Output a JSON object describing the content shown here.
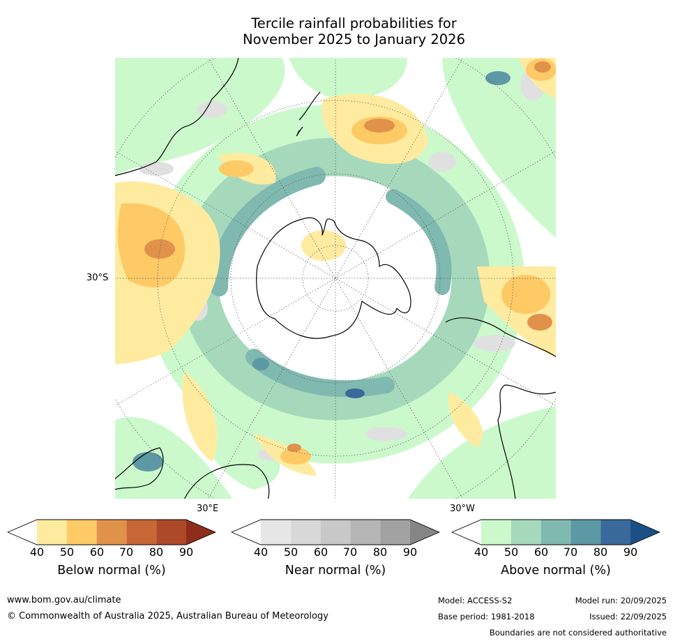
{
  "title_line1": "Tercile rainfall probabilities for",
  "title_line2": "November 2025 to January 2026",
  "map": {
    "lat_label": "30°S",
    "lon_labels": [
      "30°E",
      "30°W"
    ]
  },
  "colorbars": [
    {
      "label": "Below normal (%)",
      "ticks": [
        "40",
        "50",
        "60",
        "70",
        "80",
        "90"
      ],
      "colors": [
        "#ffffff",
        "#feeb9f",
        "#fdca66",
        "#e0924b",
        "#c86636",
        "#ad4828",
        "#8f2d1b"
      ]
    },
    {
      "label": "Near normal (%)",
      "ticks": [
        "40",
        "50",
        "60",
        "70",
        "80",
        "90"
      ],
      "colors": [
        "#ffffff",
        "#e6e6e6",
        "#d8d8d8",
        "#c8c8c8",
        "#b5b5b5",
        "#a2a2a2",
        "#858585"
      ]
    },
    {
      "label": "Above normal (%)",
      "ticks": [
        "40",
        "50",
        "60",
        "70",
        "80",
        "90"
      ],
      "colors": [
        "#ffffff",
        "#cbf9cc",
        "#a6d9bc",
        "#80b9b0",
        "#5d99a5",
        "#3a6a9c",
        "#1c4f86"
      ]
    }
  ],
  "footer": {
    "url": "www.bom.gov.au/climate",
    "copyright": "© Commonwealth of Australia 2025, Australian Bureau of Meteorology",
    "model": "Model: ACCESS-S2",
    "model_run": "Model run: 20/09/2025",
    "base_period": "Base period: 1981-2018",
    "issued": "Issued: 22/09/2025",
    "disclaimer": "Boundaries are not considered authoritative"
  }
}
